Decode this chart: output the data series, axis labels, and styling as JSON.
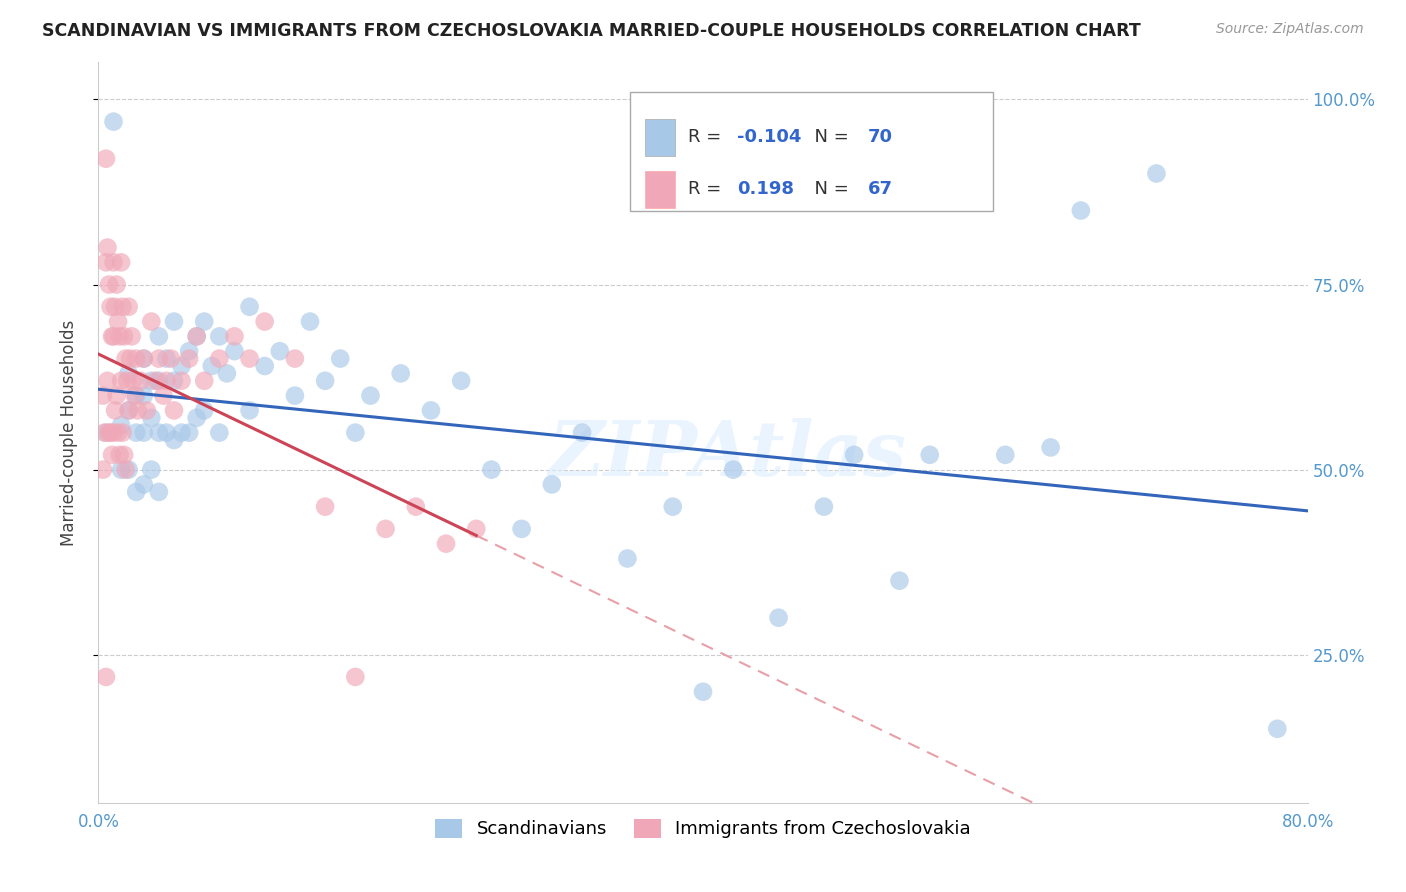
{
  "title": "SCANDINAVIAN VS IMMIGRANTS FROM CZECHOSLOVAKIA MARRIED-COUPLE HOUSEHOLDS CORRELATION CHART",
  "source": "Source: ZipAtlas.com",
  "ylabel": "Married-couple Households",
  "xlim": [
    0.0,
    0.8
  ],
  "ylim": [
    0.05,
    1.05
  ],
  "xticks": [
    0.0,
    0.2,
    0.4,
    0.6,
    0.8
  ],
  "yticks": [
    0.25,
    0.5,
    0.75,
    1.0
  ],
  "yticklabels": [
    "25.0%",
    "50.0%",
    "75.0%",
    "100.0%"
  ],
  "legend_labels": [
    "Scandinavians",
    "Immigrants from Czechoslovakia"
  ],
  "blue_R": "-0.104",
  "blue_N": "70",
  "pink_R": "0.198",
  "pink_N": "67",
  "blue_color": "#a8c8e8",
  "pink_color": "#f0a8b8",
  "blue_line_color": "#3366bb",
  "pink_line_color": "#cc4455",
  "pink_dash_color": "#e8a0a8",
  "watermark": "ZIPAtlas",
  "blue_scatter_x": [
    0.005,
    0.01,
    0.015,
    0.015,
    0.02,
    0.02,
    0.02,
    0.025,
    0.025,
    0.025,
    0.03,
    0.03,
    0.03,
    0.03,
    0.035,
    0.035,
    0.035,
    0.04,
    0.04,
    0.04,
    0.04,
    0.045,
    0.045,
    0.05,
    0.05,
    0.05,
    0.055,
    0.055,
    0.06,
    0.06,
    0.065,
    0.065,
    0.07,
    0.07,
    0.075,
    0.08,
    0.08,
    0.085,
    0.09,
    0.1,
    0.1,
    0.11,
    0.12,
    0.13,
    0.14,
    0.15,
    0.16,
    0.17,
    0.18,
    0.2,
    0.22,
    0.24,
    0.26,
    0.28,
    0.3,
    0.32,
    0.35,
    0.38,
    0.4,
    0.42,
    0.45,
    0.48,
    0.5,
    0.53,
    0.55,
    0.6,
    0.63,
    0.65,
    0.7,
    0.78
  ],
  "blue_scatter_y": [
    0.55,
    0.97,
    0.56,
    0.5,
    0.63,
    0.58,
    0.5,
    0.6,
    0.55,
    0.47,
    0.65,
    0.6,
    0.55,
    0.48,
    0.62,
    0.57,
    0.5,
    0.68,
    0.62,
    0.55,
    0.47,
    0.65,
    0.55,
    0.7,
    0.62,
    0.54,
    0.64,
    0.55,
    0.66,
    0.55,
    0.68,
    0.57,
    0.7,
    0.58,
    0.64,
    0.68,
    0.55,
    0.63,
    0.66,
    0.72,
    0.58,
    0.64,
    0.66,
    0.6,
    0.7,
    0.62,
    0.65,
    0.55,
    0.6,
    0.63,
    0.58,
    0.62,
    0.5,
    0.42,
    0.48,
    0.55,
    0.38,
    0.45,
    0.2,
    0.5,
    0.3,
    0.45,
    0.52,
    0.35,
    0.52,
    0.52,
    0.53,
    0.85,
    0.9,
    0.15
  ],
  "pink_scatter_x": [
    0.003,
    0.003,
    0.004,
    0.005,
    0.005,
    0.005,
    0.006,
    0.006,
    0.007,
    0.007,
    0.008,
    0.008,
    0.009,
    0.009,
    0.01,
    0.01,
    0.01,
    0.011,
    0.011,
    0.012,
    0.012,
    0.013,
    0.013,
    0.014,
    0.014,
    0.015,
    0.015,
    0.016,
    0.016,
    0.017,
    0.017,
    0.018,
    0.018,
    0.019,
    0.02,
    0.02,
    0.021,
    0.022,
    0.023,
    0.024,
    0.025,
    0.026,
    0.028,
    0.03,
    0.032,
    0.035,
    0.038,
    0.04,
    0.043,
    0.045,
    0.048,
    0.05,
    0.055,
    0.06,
    0.065,
    0.07,
    0.08,
    0.09,
    0.1,
    0.11,
    0.13,
    0.15,
    0.17,
    0.19,
    0.21,
    0.23,
    0.25
  ],
  "pink_scatter_y": [
    0.6,
    0.5,
    0.55,
    0.92,
    0.78,
    0.22,
    0.8,
    0.62,
    0.75,
    0.55,
    0.72,
    0.55,
    0.68,
    0.52,
    0.78,
    0.68,
    0.55,
    0.72,
    0.58,
    0.75,
    0.6,
    0.7,
    0.55,
    0.68,
    0.52,
    0.78,
    0.62,
    0.72,
    0.55,
    0.68,
    0.52,
    0.65,
    0.5,
    0.62,
    0.72,
    0.58,
    0.65,
    0.68,
    0.62,
    0.6,
    0.65,
    0.58,
    0.62,
    0.65,
    0.58,
    0.7,
    0.62,
    0.65,
    0.6,
    0.62,
    0.65,
    0.58,
    0.62,
    0.65,
    0.68,
    0.62,
    0.65,
    0.68,
    0.65,
    0.7,
    0.65,
    0.45,
    0.22,
    0.42,
    0.45,
    0.4,
    0.42
  ]
}
